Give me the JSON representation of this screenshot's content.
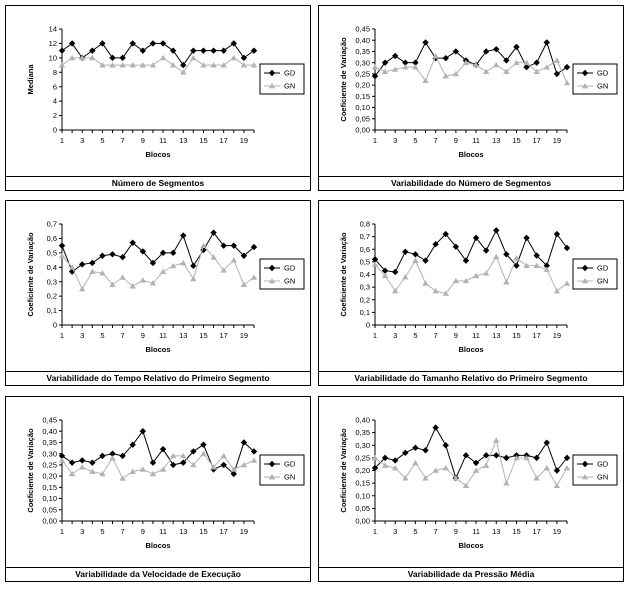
{
  "x_ticks": [
    "1",
    "3",
    "5",
    "7",
    "9",
    "11",
    "13",
    "15",
    "17",
    "19"
  ],
  "series_names": [
    "GD",
    "GN"
  ],
  "colors": {
    "gd": "#000000",
    "gn": "#b3b3b3"
  },
  "chart_data": [
    {
      "type": "line",
      "title": "Número de Segmentos",
      "xlabel": "Blocos",
      "ylabel": "Mediana",
      "x": [
        1,
        2,
        3,
        4,
        5,
        6,
        7,
        8,
        9,
        10,
        11,
        12,
        13,
        14,
        15,
        16,
        17,
        18,
        19,
        20
      ],
      "ylim": [
        0,
        14
      ],
      "yticks": [
        "0",
        "2",
        "4",
        "6",
        "8",
        "10",
        "12",
        "14"
      ],
      "series": [
        {
          "name": "GD",
          "values": [
            11,
            12,
            10,
            11,
            12,
            10,
            10,
            12,
            11,
            12,
            12,
            11,
            9,
            11,
            11,
            11,
            11,
            12,
            10,
            11
          ]
        },
        {
          "name": "GN",
          "values": [
            9,
            10,
            10,
            10,
            9,
            9,
            9,
            9,
            9,
            9,
            10,
            9,
            8,
            10,
            9,
            9,
            9,
            10,
            9,
            9
          ]
        }
      ]
    },
    {
      "type": "line",
      "title": "Variabilidade do Número de Segmentos",
      "xlabel": "Blocos",
      "ylabel": "Coeficiente de Variação",
      "x": [
        1,
        2,
        3,
        4,
        5,
        6,
        7,
        8,
        9,
        10,
        11,
        12,
        13,
        14,
        15,
        16,
        17,
        18,
        19,
        20
      ],
      "ylim": [
        0,
        0.45
      ],
      "yticks": [
        "0,00",
        "0,05",
        "0,10",
        "0,15",
        "0,20",
        "0,25",
        "0,30",
        "0,35",
        "0,40",
        "0,45"
      ],
      "series": [
        {
          "name": "GD",
          "values": [
            0.24,
            0.3,
            0.33,
            0.3,
            0.3,
            0.39,
            0.32,
            0.32,
            0.35,
            0.31,
            0.29,
            0.35,
            0.36,
            0.31,
            0.37,
            0.28,
            0.3,
            0.39,
            0.25,
            0.28
          ]
        },
        {
          "name": "GN",
          "values": [
            0.28,
            0.26,
            0.27,
            0.28,
            0.28,
            0.22,
            0.33,
            0.24,
            0.25,
            0.3,
            0.29,
            0.26,
            0.29,
            0.26,
            0.3,
            0.3,
            0.26,
            0.28,
            0.31,
            0.21
          ]
        }
      ]
    },
    {
      "type": "line",
      "title": "Variabilidade do Tempo Relativo do Primeiro Segmento",
      "xlabel": "Blocos",
      "ylabel": "Coeficiente de Variação",
      "x": [
        1,
        2,
        3,
        4,
        5,
        6,
        7,
        8,
        9,
        10,
        11,
        12,
        13,
        14,
        15,
        16,
        17,
        18,
        19,
        20
      ],
      "ylim": [
        0,
        0.7
      ],
      "yticks": [
        "0",
        "0,1",
        "0,2",
        "0,3",
        "0,4",
        "0,5",
        "0,6",
        "0,7"
      ],
      "series": [
        {
          "name": "GD",
          "values": [
            0.55,
            0.37,
            0.42,
            0.43,
            0.48,
            0.49,
            0.47,
            0.57,
            0.51,
            0.43,
            0.5,
            0.5,
            0.62,
            0.41,
            0.52,
            0.64,
            0.55,
            0.55,
            0.48,
            0.54
          ]
        },
        {
          "name": "GN",
          "values": [
            0.48,
            0.4,
            0.25,
            0.37,
            0.36,
            0.28,
            0.33,
            0.27,
            0.31,
            0.29,
            0.37,
            0.41,
            0.43,
            0.32,
            0.55,
            0.47,
            0.38,
            0.45,
            0.28,
            0.33
          ]
        }
      ]
    },
    {
      "type": "line",
      "title": "Variabilidade do Tamanho Relativo do Primeiro Segmento",
      "xlabel": "Blocos",
      "ylabel": "Coeficiente de Variação",
      "x": [
        1,
        2,
        3,
        4,
        5,
        6,
        7,
        8,
        9,
        10,
        11,
        12,
        13,
        14,
        15,
        16,
        17,
        18,
        19,
        20
      ],
      "ylim": [
        0,
        0.8
      ],
      "yticks": [
        "0",
        "0,1",
        "0,2",
        "0,3",
        "0,4",
        "0,5",
        "0,6",
        "0,7",
        "0,8"
      ],
      "series": [
        {
          "name": "GD",
          "values": [
            0.52,
            0.43,
            0.42,
            0.58,
            0.56,
            0.51,
            0.64,
            0.72,
            0.62,
            0.51,
            0.69,
            0.59,
            0.75,
            0.56,
            0.47,
            0.69,
            0.55,
            0.47,
            0.72,
            0.61
          ]
        },
        {
          "name": "GN",
          "values": [
            0.48,
            0.39,
            0.27,
            0.38,
            0.51,
            0.33,
            0.27,
            0.25,
            0.35,
            0.35,
            0.39,
            0.41,
            0.54,
            0.34,
            0.53,
            0.47,
            0.47,
            0.44,
            0.27,
            0.33
          ]
        }
      ]
    },
    {
      "type": "line",
      "title": "Variabilidade da Velocidade de Execução",
      "xlabel": "Blocos",
      "ylabel": "Coeficiente de Variação",
      "x": [
        1,
        2,
        3,
        4,
        5,
        6,
        7,
        8,
        9,
        10,
        11,
        12,
        13,
        14,
        15,
        16,
        17,
        18,
        19,
        20
      ],
      "ylim": [
        0,
        0.45
      ],
      "yticks": [
        "0,00",
        "0,05",
        "0,10",
        "0,15",
        "0,20",
        "0,25",
        "0,30",
        "0,35",
        "0,40",
        "0,45"
      ],
      "series": [
        {
          "name": "GD",
          "values": [
            0.29,
            0.26,
            0.27,
            0.26,
            0.29,
            0.3,
            0.29,
            0.34,
            0.4,
            0.26,
            0.32,
            0.25,
            0.26,
            0.31,
            0.34,
            0.23,
            0.25,
            0.21,
            0.35,
            0.31
          ]
        },
        {
          "name": "GN",
          "values": [
            0.27,
            0.21,
            0.24,
            0.22,
            0.21,
            0.28,
            0.19,
            0.22,
            0.23,
            0.21,
            0.23,
            0.29,
            0.29,
            0.25,
            0.3,
            0.24,
            0.29,
            0.23,
            0.25,
            0.27
          ]
        }
      ]
    },
    {
      "type": "line",
      "title": "Variabilidade da Pressão Média",
      "xlabel": "Blocos",
      "ylabel": "Coeficiente de Variação",
      "x": [
        1,
        2,
        3,
        4,
        5,
        6,
        7,
        8,
        9,
        10,
        11,
        12,
        13,
        14,
        15,
        16,
        17,
        18,
        19,
        20
      ],
      "ylim": [
        0,
        0.4
      ],
      "yticks": [
        "0,00",
        "0,05",
        "0,10",
        "0,15",
        "0,20",
        "0,25",
        "0,30",
        "0,35",
        "0,40"
      ],
      "series": [
        {
          "name": "GD",
          "values": [
            0.21,
            0.25,
            0.24,
            0.27,
            0.29,
            0.28,
            0.37,
            0.3,
            0.17,
            0.26,
            0.23,
            0.26,
            0.26,
            0.25,
            0.26,
            0.26,
            0.25,
            0.31,
            0.2,
            0.25
          ]
        },
        {
          "name": "GN",
          "values": [
            0.25,
            0.22,
            0.21,
            0.17,
            0.23,
            0.17,
            0.2,
            0.21,
            0.17,
            0.14,
            0.2,
            0.22,
            0.32,
            0.15,
            0.25,
            0.25,
            0.17,
            0.21,
            0.14,
            0.21
          ]
        }
      ]
    }
  ]
}
